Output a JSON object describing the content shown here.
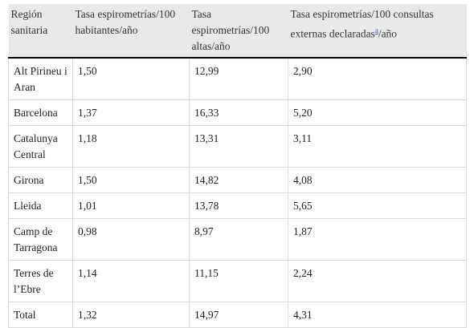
{
  "table": {
    "header": [
      "Región sanitaria",
      "Tasa espirometrías/100 habitantes/año",
      "Tasa espirometrías/100 altas/año",
      {
        "text": "Tasa espirometrías/100 consultas externas declaradas",
        "note": "a",
        "suffix": "/año"
      }
    ],
    "rows": [
      [
        "Alt Pirineu i Aran",
        "1,50",
        "12,99",
        "2,90"
      ],
      [
        "Barcelona",
        "1,37",
        "16,33",
        "5,20"
      ],
      [
        "Catalunya Central",
        "1,18",
        "13,31",
        "3,11"
      ],
      [
        "Girona",
        "1,50",
        "14,82",
        "4,08"
      ],
      [
        "Lleida",
        "1,01",
        "13,78",
        "5,65"
      ],
      [
        "Camp de Tarragona",
        "0,98",
        "8,97",
        "1,87"
      ],
      [
        "Terres de l’Ebre",
        "1,14",
        "11,15",
        "2,24"
      ],
      [
        "Total",
        "1,32",
        "14,97",
        "4,31"
      ]
    ]
  }
}
